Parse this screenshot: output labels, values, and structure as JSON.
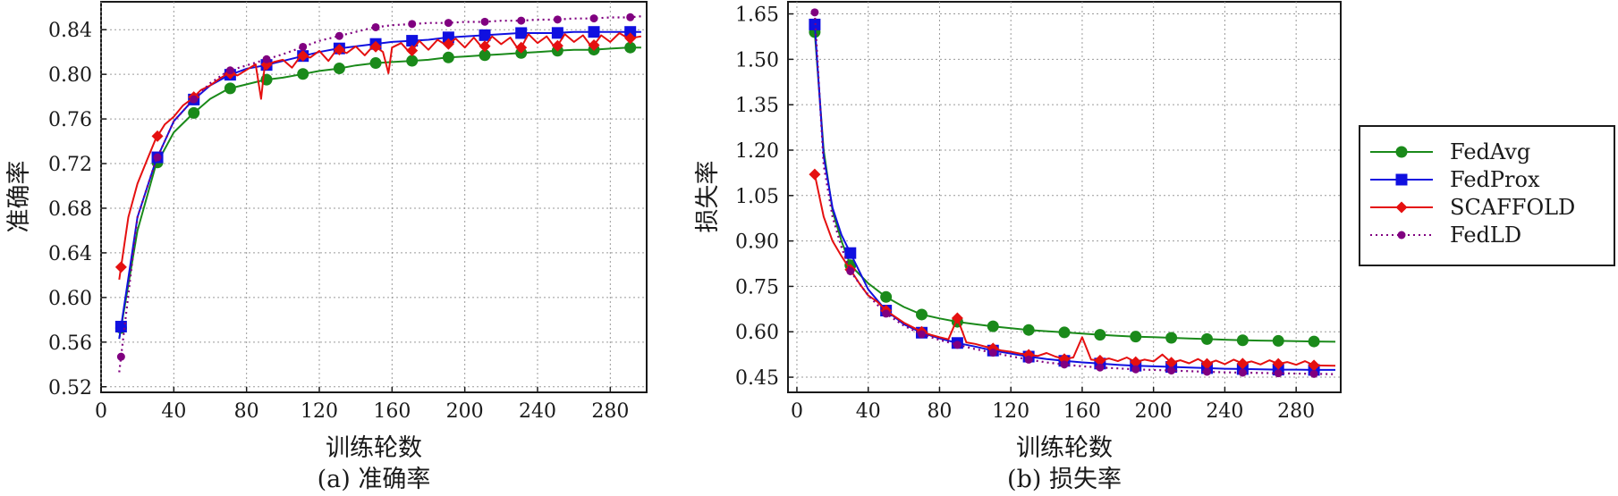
{
  "chart_data": [
    {
      "type": "line",
      "caption": "(a) 准确率",
      "xlabel": "训练轮数",
      "ylabel": "准确率",
      "xlim": [
        0,
        300
      ],
      "ylim": [
        0.515,
        0.865
      ],
      "xticks": [
        0,
        40,
        80,
        120,
        160,
        200,
        240,
        280
      ],
      "yticks": [
        0.52,
        0.56,
        0.6,
        0.64,
        0.68,
        0.72,
        0.76,
        0.8,
        0.84
      ],
      "ytick_labels": [
        "0.52",
        "0.56",
        "0.60",
        "0.64",
        "0.68",
        "0.72",
        "0.76",
        "0.80",
        "0.84"
      ],
      "grid": true,
      "series": [
        {
          "name": "FedAvg",
          "color": "#1a8a1a",
          "marker": "circle",
          "style": "solid",
          "x": [
            10,
            20,
            30,
            40,
            50,
            60,
            70,
            80,
            90,
            100,
            110,
            120,
            130,
            140,
            150,
            160,
            170,
            180,
            190,
            200,
            210,
            220,
            230,
            240,
            250,
            260,
            270,
            280,
            290,
            297
          ],
          "y": [
            0.563,
            0.66,
            0.718,
            0.748,
            0.764,
            0.778,
            0.787,
            0.791,
            0.795,
            0.797,
            0.8,
            0.803,
            0.805,
            0.808,
            0.81,
            0.811,
            0.812,
            0.813,
            0.815,
            0.816,
            0.817,
            0.818,
            0.819,
            0.82,
            0.821,
            0.822,
            0.822,
            0.823,
            0.824,
            0.824
          ],
          "markers_x": [
            11,
            31,
            51,
            71,
            91,
            111,
            131,
            151,
            171,
            191,
            211,
            231,
            251,
            271,
            291
          ]
        },
        {
          "name": "FedProx",
          "color": "#1010e0",
          "marker": "square",
          "style": "solid",
          "x": [
            10,
            20,
            30,
            40,
            50,
            60,
            70,
            80,
            90,
            100,
            110,
            120,
            130,
            140,
            150,
            160,
            170,
            180,
            190,
            200,
            210,
            220,
            230,
            240,
            250,
            260,
            270,
            280,
            290,
            297
          ],
          "y": [
            0.563,
            0.672,
            0.722,
            0.758,
            0.776,
            0.79,
            0.799,
            0.805,
            0.808,
            0.812,
            0.816,
            0.82,
            0.823,
            0.825,
            0.827,
            0.829,
            0.83,
            0.831,
            0.833,
            0.834,
            0.835,
            0.836,
            0.837,
            0.837,
            0.837,
            0.838,
            0.838,
            0.838,
            0.838,
            0.838
          ],
          "markers_x": [
            11,
            31,
            51,
            71,
            91,
            111,
            131,
            151,
            171,
            191,
            211,
            231,
            251,
            271,
            291
          ]
        },
        {
          "name": "SCAFFOLD",
          "color": "#e51010",
          "marker": "diamond",
          "style": "solid",
          "x": [
            10,
            15,
            20,
            25,
            30,
            35,
            40,
            45,
            50,
            55,
            60,
            65,
            70,
            75,
            80,
            85,
            88,
            90,
            95,
            100,
            105,
            110,
            115,
            120,
            125,
            130,
            135,
            140,
            145,
            150,
            155,
            158,
            160,
            165,
            170,
            175,
            180,
            185,
            190,
            195,
            200,
            205,
            210,
            215,
            220,
            225,
            230,
            235,
            240,
            245,
            250,
            255,
            260,
            265,
            270,
            275,
            280,
            285,
            290,
            297
          ],
          "y": [
            0.616,
            0.672,
            0.702,
            0.722,
            0.742,
            0.755,
            0.762,
            0.772,
            0.778,
            0.786,
            0.79,
            0.796,
            0.801,
            0.799,
            0.804,
            0.809,
            0.778,
            0.808,
            0.811,
            0.813,
            0.806,
            0.817,
            0.815,
            0.821,
            0.812,
            0.823,
            0.819,
            0.825,
            0.817,
            0.826,
            0.82,
            0.801,
            0.824,
            0.828,
            0.819,
            0.83,
            0.822,
            0.831,
            0.826,
            0.832,
            0.824,
            0.833,
            0.823,
            0.834,
            0.827,
            0.833,
            0.821,
            0.836,
            0.828,
            0.834,
            0.823,
            0.836,
            0.829,
            0.835,
            0.824,
            0.835,
            0.829,
            0.837,
            0.832,
            0.834
          ],
          "markers_x": [
            11,
            31,
            51,
            71,
            91,
            111,
            131,
            151,
            171,
            191,
            211,
            231,
            251,
            271,
            291
          ]
        },
        {
          "name": "FedLD",
          "color": "#800080",
          "marker": "dot",
          "style": "dotted",
          "x": [
            10,
            20,
            30,
            40,
            50,
            60,
            70,
            80,
            90,
            100,
            110,
            120,
            130,
            140,
            150,
            160,
            170,
            180,
            190,
            200,
            210,
            220,
            230,
            240,
            250,
            260,
            270,
            280,
            290,
            297
          ],
          "y": [
            0.533,
            0.672,
            0.722,
            0.758,
            0.776,
            0.792,
            0.803,
            0.808,
            0.813,
            0.818,
            0.824,
            0.83,
            0.834,
            0.838,
            0.842,
            0.844,
            0.845,
            0.846,
            0.846,
            0.847,
            0.847,
            0.848,
            0.848,
            0.849,
            0.849,
            0.85,
            0.85,
            0.851,
            0.851,
            0.852
          ],
          "markers_x": [
            11,
            31,
            51,
            71,
            91,
            111,
            131,
            151,
            171,
            191,
            211,
            231,
            251,
            271,
            291
          ]
        }
      ]
    },
    {
      "type": "line",
      "caption": "(b) 损失率",
      "xlabel": "训练轮数",
      "ylabel": "损失率",
      "xlim": [
        -5,
        305
      ],
      "ylim": [
        0.4,
        1.69
      ],
      "xticks": [
        0,
        40,
        80,
        120,
        160,
        200,
        240,
        280
      ],
      "yticks": [
        0.45,
        0.6,
        0.75,
        0.9,
        1.05,
        1.2,
        1.35,
        1.5,
        1.65
      ],
      "ytick_labels": [
        "0.45",
        "0.60",
        "0.75",
        "0.90",
        "1.05",
        "1.20",
        "1.35",
        "1.50",
        "1.65"
      ],
      "grid": true,
      "series": [
        {
          "name": "FedAvg",
          "color": "#1a8a1a",
          "marker": "circle",
          "style": "solid",
          "x": [
            10,
            15,
            20,
            25,
            30,
            40,
            50,
            60,
            70,
            80,
            90,
            100,
            110,
            120,
            130,
            140,
            150,
            160,
            170,
            180,
            190,
            200,
            210,
            220,
            230,
            240,
            250,
            260,
            270,
            280,
            290,
            302
          ],
          "y": [
            1.59,
            1.2,
            1.0,
            0.9,
            0.82,
            0.76,
            0.715,
            0.682,
            0.657,
            0.644,
            0.633,
            0.625,
            0.618,
            0.612,
            0.606,
            0.602,
            0.598,
            0.594,
            0.59,
            0.587,
            0.584,
            0.582,
            0.58,
            0.578,
            0.576,
            0.574,
            0.572,
            0.571,
            0.57,
            0.569,
            0.568,
            0.567
          ],
          "markers_x": [
            10,
            30,
            50,
            70,
            90,
            110,
            130,
            150,
            170,
            190,
            210,
            230,
            250,
            270,
            290
          ]
        },
        {
          "name": "FedProx",
          "color": "#1010e0",
          "marker": "square",
          "style": "solid",
          "x": [
            10,
            15,
            20,
            25,
            30,
            40,
            50,
            60,
            70,
            80,
            90,
            100,
            110,
            120,
            130,
            140,
            150,
            160,
            170,
            180,
            190,
            200,
            210,
            220,
            230,
            240,
            250,
            260,
            270,
            280,
            290,
            302
          ],
          "y": [
            1.615,
            1.18,
            1.01,
            0.92,
            0.86,
            0.74,
            0.67,
            0.625,
            0.597,
            0.578,
            0.563,
            0.551,
            0.538,
            0.528,
            0.518,
            0.51,
            0.504,
            0.499,
            0.495,
            0.491,
            0.488,
            0.486,
            0.484,
            0.482,
            0.48,
            0.478,
            0.477,
            0.476,
            0.475,
            0.475,
            0.474,
            0.474
          ],
          "markers_x": [
            10,
            30,
            50,
            70,
            90,
            110,
            130,
            150,
            170,
            190,
            210,
            230,
            250,
            270,
            290
          ]
        },
        {
          "name": "SCAFFOLD",
          "color": "#e51010",
          "marker": "diamond",
          "style": "solid",
          "x": [
            10,
            15,
            20,
            25,
            30,
            35,
            40,
            45,
            50,
            55,
            60,
            65,
            70,
            75,
            80,
            85,
            90,
            95,
            100,
            105,
            110,
            115,
            120,
            125,
            130,
            135,
            140,
            145,
            150,
            155,
            160,
            165,
            170,
            175,
            180,
            185,
            190,
            195,
            200,
            205,
            210,
            215,
            220,
            225,
            230,
            235,
            240,
            245,
            250,
            255,
            260,
            265,
            270,
            275,
            280,
            285,
            290,
            302
          ],
          "y": [
            1.12,
            0.98,
            0.9,
            0.85,
            0.805,
            0.76,
            0.72,
            0.7,
            0.67,
            0.65,
            0.63,
            0.615,
            0.6,
            0.59,
            0.582,
            0.575,
            0.645,
            0.565,
            0.56,
            0.552,
            0.545,
            0.538,
            0.534,
            0.528,
            0.524,
            0.52,
            0.53,
            0.518,
            0.51,
            0.515,
            0.582,
            0.508,
            0.505,
            0.512,
            0.503,
            0.515,
            0.5,
            0.508,
            0.502,
            0.525,
            0.498,
            0.506,
            0.496,
            0.51,
            0.494,
            0.505,
            0.493,
            0.508,
            0.495,
            0.502,
            0.492,
            0.506,
            0.494,
            0.5,
            0.491,
            0.503,
            0.489,
            0.488
          ],
          "markers_x": [
            10,
            30,
            50,
            70,
            90,
            110,
            130,
            150,
            170,
            190,
            210,
            230,
            250,
            270,
            290
          ]
        },
        {
          "name": "FedLD",
          "color": "#800080",
          "marker": "dot",
          "style": "dotted",
          "x": [
            10,
            15,
            20,
            25,
            30,
            40,
            50,
            60,
            70,
            80,
            90,
            100,
            110,
            120,
            130,
            140,
            150,
            160,
            170,
            180,
            190,
            200,
            210,
            220,
            230,
            240,
            250,
            260,
            270,
            280,
            290,
            302
          ],
          "y": [
            1.655,
            1.15,
            0.98,
            0.88,
            0.8,
            0.72,
            0.66,
            0.62,
            0.592,
            0.573,
            0.557,
            0.543,
            0.531,
            0.519,
            0.508,
            0.499,
            0.492,
            0.486,
            0.482,
            0.479,
            0.476,
            0.474,
            0.472,
            0.47,
            0.468,
            0.466,
            0.465,
            0.464,
            0.463,
            0.462,
            0.461,
            0.46
          ],
          "markers_x": [
            10,
            30,
            50,
            70,
            90,
            110,
            130,
            150,
            170,
            190,
            210,
            230,
            250,
            270,
            290
          ]
        }
      ]
    }
  ],
  "legend": {
    "position": "right",
    "items": [
      {
        "label": "FedAvg",
        "color": "#1a8a1a",
        "marker": "circle",
        "style": "solid"
      },
      {
        "label": "FedProx",
        "color": "#1010e0",
        "marker": "square",
        "style": "solid"
      },
      {
        "label": "SCAFFOLD",
        "color": "#e51010",
        "marker": "diamond",
        "style": "solid"
      },
      {
        "label": "FedLD",
        "color": "#800080",
        "marker": "dot",
        "style": "dotted"
      }
    ]
  }
}
